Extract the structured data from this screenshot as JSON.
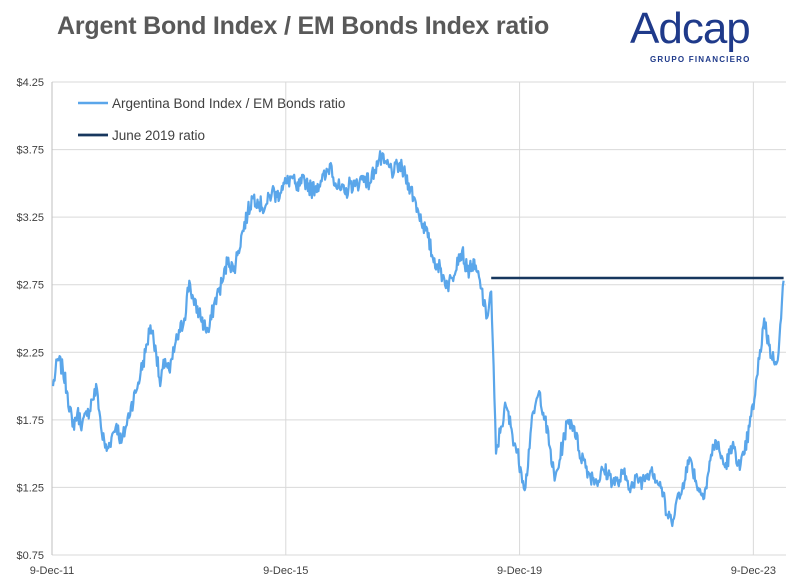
{
  "header": {
    "title": "Argent Bond Index / EM Bonds Index ratio"
  },
  "logo": {
    "wordmark": "Adcap",
    "tagline": "GRUPO FINANCIERO",
    "color": "#1f3a8a"
  },
  "chart_data": {
    "type": "line",
    "title": "Argent Bond Index / EM Bonds Index ratio",
    "xlabel": "",
    "ylabel": "",
    "ylim": [
      0.75,
      4.25
    ],
    "yticks": [
      "$0.75",
      "$1.25",
      "$1.75",
      "$2.25",
      "$2.75",
      "$3.25",
      "$3.75",
      "$4.25"
    ],
    "ytick_values": [
      0.75,
      1.25,
      1.75,
      2.25,
      2.75,
      3.25,
      3.75,
      4.25
    ],
    "xticks": [
      "9-Dec-11",
      "9-Dec-15",
      "9-Dec-19",
      "9-Dec-23"
    ],
    "xtick_values": [
      "2011-12-09",
      "2015-12-09",
      "2019-12-09",
      "2023-12-09"
    ],
    "xlim": [
      "2011-12-09",
      "2024-06-30"
    ],
    "grid": {
      "horizontal": true,
      "vertical": true
    },
    "legend_position": "top-left",
    "series": [
      {
        "name": "Argentina Bond Index / EM Bonds ratio",
        "color": "#5aa6ea",
        "x": [
          "2011-12",
          "2012-01",
          "2012-02",
          "2012-03",
          "2012-04",
          "2012-05",
          "2012-06",
          "2012-07",
          "2012-08",
          "2012-09",
          "2012-10",
          "2012-11",
          "2012-12",
          "2013-01",
          "2013-02",
          "2013-03",
          "2013-04",
          "2013-05",
          "2013-06",
          "2013-07",
          "2013-08",
          "2013-09",
          "2013-10",
          "2013-11",
          "2013-12",
          "2014-01",
          "2014-02",
          "2014-03",
          "2014-04",
          "2014-05",
          "2014-06",
          "2014-07",
          "2014-08",
          "2014-09",
          "2014-10",
          "2014-11",
          "2014-12",
          "2015-01",
          "2015-02",
          "2015-03",
          "2015-04",
          "2015-05",
          "2015-06",
          "2015-07",
          "2015-08",
          "2015-09",
          "2015-10",
          "2015-11",
          "2015-12",
          "2016-01",
          "2016-02",
          "2016-03",
          "2016-04",
          "2016-05",
          "2016-06",
          "2016-07",
          "2016-08",
          "2016-09",
          "2016-10",
          "2016-11",
          "2016-12",
          "2017-01",
          "2017-02",
          "2017-03",
          "2017-04",
          "2017-05",
          "2017-06",
          "2017-07",
          "2017-08",
          "2017-09",
          "2017-10",
          "2017-11",
          "2017-12",
          "2018-01",
          "2018-02",
          "2018-03",
          "2018-04",
          "2018-05",
          "2018-06",
          "2018-07",
          "2018-08",
          "2018-09",
          "2018-10",
          "2018-11",
          "2018-12",
          "2019-01",
          "2019-02",
          "2019-03",
          "2019-04",
          "2019-05",
          "2019-06",
          "2019-07",
          "2019-08",
          "2019-09",
          "2019-10",
          "2019-11",
          "2019-12",
          "2020-01",
          "2020-02",
          "2020-03",
          "2020-04",
          "2020-05",
          "2020-06",
          "2020-07",
          "2020-08",
          "2020-09",
          "2020-10",
          "2020-11",
          "2020-12",
          "2021-01",
          "2021-02",
          "2021-03",
          "2021-04",
          "2021-05",
          "2021-06",
          "2021-07",
          "2021-08",
          "2021-09",
          "2021-10",
          "2021-11",
          "2021-12",
          "2022-01",
          "2022-02",
          "2022-03",
          "2022-04",
          "2022-05",
          "2022-06",
          "2022-07",
          "2022-08",
          "2022-09",
          "2022-10",
          "2022-11",
          "2022-12",
          "2023-01",
          "2023-02",
          "2023-03",
          "2023-04",
          "2023-05",
          "2023-06",
          "2023-07",
          "2023-08",
          "2023-09",
          "2023-10",
          "2023-11",
          "2023-12",
          "2024-01",
          "2024-02",
          "2024-03",
          "2024-04",
          "2024-05",
          "2024-06"
        ],
        "values": [
          2.0,
          2.2,
          2.12,
          1.95,
          1.7,
          1.8,
          1.72,
          1.78,
          1.9,
          1.98,
          1.65,
          1.52,
          1.62,
          1.72,
          1.58,
          1.7,
          1.85,
          1.95,
          2.1,
          2.25,
          2.45,
          2.3,
          2.0,
          2.2,
          2.1,
          2.3,
          2.4,
          2.5,
          2.78,
          2.6,
          2.55,
          2.45,
          2.4,
          2.6,
          2.7,
          2.8,
          2.95,
          2.85,
          3.0,
          3.15,
          3.28,
          3.4,
          3.38,
          3.32,
          3.35,
          3.45,
          3.4,
          3.48,
          3.5,
          3.55,
          3.45,
          3.5,
          3.52,
          3.45,
          3.48,
          3.52,
          3.55,
          3.65,
          3.5,
          3.45,
          3.42,
          3.5,
          3.48,
          3.52,
          3.55,
          3.5,
          3.6,
          3.68,
          3.65,
          3.62,
          3.58,
          3.64,
          3.58,
          3.5,
          3.4,
          3.3,
          3.2,
          3.1,
          2.95,
          2.9,
          2.82,
          2.75,
          2.8,
          2.95,
          3.0,
          2.85,
          2.9,
          2.85,
          2.72,
          2.5,
          2.7,
          1.5,
          1.7,
          1.85,
          1.7,
          1.55,
          1.4,
          1.25,
          1.65,
          1.85,
          1.95,
          1.75,
          1.55,
          1.3,
          1.45,
          1.65,
          1.75,
          1.7,
          1.52,
          1.45,
          1.35,
          1.32,
          1.3,
          1.38,
          1.35,
          1.3,
          1.28,
          1.35,
          1.3,
          1.25,
          1.32,
          1.3,
          1.35,
          1.4,
          1.3,
          1.25,
          1.05,
          1.0,
          1.15,
          1.2,
          1.4,
          1.45,
          1.3,
          1.2,
          1.25,
          1.45,
          1.6,
          1.5,
          1.4,
          1.5,
          1.55,
          1.38,
          1.5,
          1.7,
          1.9,
          2.2,
          2.5,
          2.3,
          2.18,
          2.25,
          2.78
        ]
      },
      {
        "name": "June 2019 ratio",
        "color": "#17375e",
        "x": [
          "2019-06",
          "2024-06"
        ],
        "values": [
          2.8,
          2.8
        ]
      }
    ]
  }
}
